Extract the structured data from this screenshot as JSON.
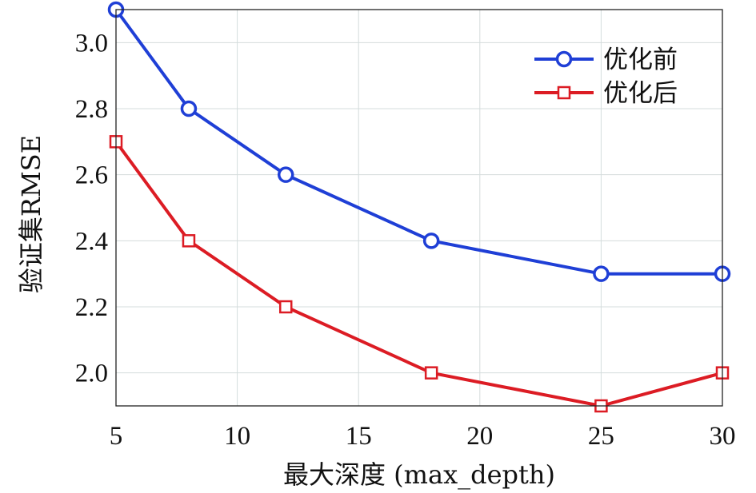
{
  "chart_data": {
    "type": "line",
    "xlabel": "最大深度 (max_depth)",
    "ylabel": "验证集RMSE",
    "x": [
      5,
      8,
      12,
      18,
      25,
      30
    ],
    "xlim": [
      5,
      30
    ],
    "ylim": [
      1.9,
      3.1
    ],
    "xticks": [
      5,
      10,
      15,
      20,
      25,
      30
    ],
    "yticks": [
      2.0,
      2.2,
      2.4,
      2.6,
      2.8,
      3.0
    ],
    "xtick_labels": [
      "5",
      "10",
      "15",
      "20",
      "25",
      "30"
    ],
    "ytick_labels": [
      "2.0",
      "2.2",
      "2.4",
      "2.6",
      "2.8",
      "3.0"
    ],
    "grid": true,
    "legend_position": "top-right",
    "series": [
      {
        "name": "优化前",
        "values": [
          3.1,
          2.8,
          2.6,
          2.4,
          2.3,
          2.3
        ],
        "color": "#1f3fd6",
        "marker": "circle"
      },
      {
        "name": "优化后",
        "values": [
          2.7,
          2.4,
          2.2,
          2.0,
          1.9,
          2.0
        ],
        "color": "#dc1c24",
        "marker": "square"
      }
    ]
  }
}
